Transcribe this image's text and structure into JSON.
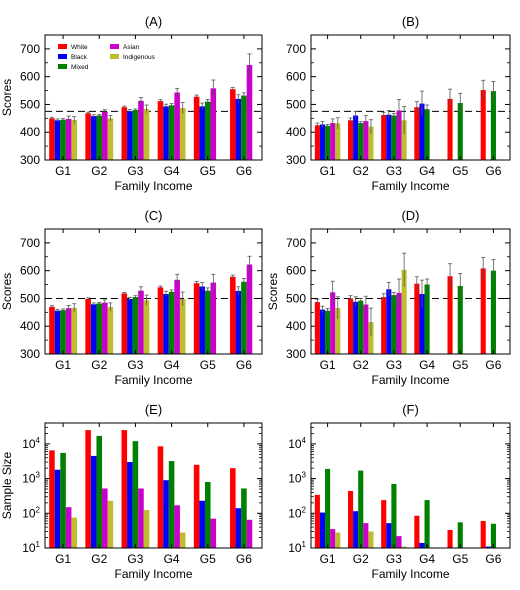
{
  "colors": {
    "White": "#ff0000",
    "Black": "#0000ff",
    "Mixed": "#008000",
    "Asian": "#cc00cc",
    "Indigenous": "#bdbd2e"
  },
  "chart_data": [
    {
      "id": "A",
      "title": "(A)",
      "type": "bar",
      "xlabel": "Family Income",
      "ylabel": "Scores",
      "ylim": [
        300,
        750
      ],
      "yticks": [
        300,
        400,
        500,
        600,
        700
      ],
      "reference_line": 475,
      "categories": [
        "G1",
        "G2",
        "G3",
        "G4",
        "G5",
        "G6"
      ],
      "legend": [
        "White",
        "Black",
        "Mixed",
        "Asian",
        "Indigenous"
      ],
      "series": [
        {
          "name": "White",
          "values": [
            450,
            468,
            490,
            512,
            528,
            555
          ],
          "err": [
            4,
            4,
            4,
            5,
            6,
            6
          ]
        },
        {
          "name": "Black",
          "values": [
            443,
            458,
            476,
            493,
            493,
            520
          ],
          "err": [
            5,
            5,
            6,
            8,
            12,
            15
          ]
        },
        {
          "name": "Mixed",
          "values": [
            445,
            460,
            480,
            497,
            510,
            532
          ],
          "err": [
            4,
            4,
            4,
            6,
            8,
            10
          ]
        },
        {
          "name": "Asian",
          "values": [
            448,
            473,
            513,
            543,
            558,
            642
          ],
          "err": [
            10,
            8,
            12,
            15,
            30,
            40
          ]
        },
        {
          "name": "Indigenous",
          "values": [
            444,
            450,
            484,
            487,
            null,
            null
          ],
          "err": [
            12,
            10,
            14,
            20,
            null,
            null
          ]
        }
      ]
    },
    {
      "id": "B",
      "title": "(B)",
      "type": "bar",
      "xlabel": "Family Income",
      "ylabel": "",
      "ylim": [
        300,
        750
      ],
      "yticks": [
        300,
        400,
        500,
        600,
        700
      ],
      "reference_line": 475,
      "categories": [
        "G1",
        "G2",
        "G3",
        "G4",
        "G5",
        "G6"
      ],
      "series": [
        {
          "name": "White",
          "values": [
            425,
            443,
            462,
            490,
            520,
            552
          ],
          "err": [
            8,
            8,
            10,
            20,
            35,
            35
          ]
        },
        {
          "name": "Black",
          "values": [
            428,
            460,
            463,
            503,
            null,
            null
          ],
          "err": [
            10,
            15,
            15,
            45,
            null,
            null
          ]
        },
        {
          "name": "Mixed",
          "values": [
            423,
            433,
            460,
            483,
            505,
            548
          ],
          "err": [
            5,
            5,
            8,
            15,
            35,
            35
          ]
        },
        {
          "name": "Asian",
          "values": [
            433,
            440,
            478,
            null,
            null,
            null
          ],
          "err": [
            15,
            20,
            40,
            null,
            null,
            null
          ]
        },
        {
          "name": "Indigenous",
          "values": [
            432,
            420,
            443,
            null,
            null,
            null
          ],
          "err": [
            20,
            25,
            50,
            null,
            null,
            null
          ]
        }
      ]
    },
    {
      "id": "C",
      "title": "(C)",
      "type": "bar",
      "xlabel": "Family Income",
      "ylabel": "Scores",
      "ylim": [
        300,
        750
      ],
      "yticks": [
        300,
        400,
        500,
        600,
        700
      ],
      "reference_line": 500,
      "categories": [
        "G1",
        "G2",
        "G3",
        "G4",
        "G5",
        "G6"
      ],
      "series": [
        {
          "name": "White",
          "values": [
            470,
            498,
            518,
            540,
            555,
            578
          ],
          "err": [
            4,
            4,
            4,
            5,
            6,
            6
          ]
        },
        {
          "name": "Black",
          "values": [
            456,
            479,
            498,
            516,
            543,
            527
          ],
          "err": [
            5,
            5,
            6,
            10,
            14,
            15
          ]
        },
        {
          "name": "Mixed",
          "values": [
            458,
            482,
            505,
            524,
            528,
            560
          ],
          "err": [
            4,
            4,
            5,
            7,
            10,
            12
          ]
        },
        {
          "name": "Asian",
          "values": [
            465,
            485,
            528,
            567,
            557,
            622
          ],
          "err": [
            10,
            10,
            14,
            20,
            30,
            30
          ]
        },
        {
          "name": "Indigenous",
          "values": [
            466,
            469,
            494,
            498,
            null,
            null
          ],
          "err": [
            15,
            15,
            18,
            25,
            null,
            null
          ]
        }
      ]
    },
    {
      "id": "D",
      "title": "(D)",
      "type": "bar",
      "xlabel": "Family Income",
      "ylabel": "Scores",
      "ylim": [
        300,
        750
      ],
      "yticks": [
        300,
        400,
        500,
        600,
        700
      ],
      "reference_line": 500,
      "categories": [
        "G1",
        "G2",
        "G3",
        "G4",
        "G5",
        "G6"
      ],
      "series": [
        {
          "name": "White",
          "values": [
            487,
            500,
            505,
            553,
            580,
            608
          ],
          "err": [
            10,
            10,
            12,
            25,
            45,
            40
          ]
        },
        {
          "name": "Black",
          "values": [
            460,
            488,
            533,
            516,
            null,
            null
          ],
          "err": [
            12,
            18,
            25,
            50,
            null,
            null
          ]
        },
        {
          "name": "Mixed",
          "values": [
            456,
            492,
            512,
            550,
            545,
            600
          ],
          "err": [
            8,
            8,
            10,
            20,
            45,
            40
          ]
        },
        {
          "name": "Asian",
          "values": [
            522,
            478,
            520,
            null,
            null,
            null
          ],
          "err": [
            40,
            30,
            50,
            null,
            null,
            null
          ]
        },
        {
          "name": "Indigenous",
          "values": [
            466,
            415,
            603,
            null,
            null,
            null
          ],
          "err": [
            40,
            50,
            60,
            null,
            null,
            null
          ]
        }
      ]
    },
    {
      "id": "E",
      "title": "(E)",
      "type": "bar",
      "yscale": "log",
      "xlabel": "Family Income",
      "ylabel": "Sample Size",
      "ylim": [
        10,
        40000
      ],
      "yticks": [
        10,
        100,
        1000,
        10000
      ],
      "categories": [
        "G1",
        "G2",
        "G3",
        "G4",
        "G5",
        "G6"
      ],
      "series": [
        {
          "name": "White",
          "values": [
            6500,
            25000,
            25000,
            8500,
            2500,
            2000
          ]
        },
        {
          "name": "Black",
          "values": [
            1800,
            4500,
            3000,
            900,
            230,
            140
          ]
        },
        {
          "name": "Mixed",
          "values": [
            5500,
            17000,
            12000,
            3200,
            800,
            520
          ]
        },
        {
          "name": "Asian",
          "values": [
            150,
            520,
            520,
            170,
            70,
            65
          ]
        },
        {
          "name": "Indigenous",
          "values": [
            75,
            230,
            125,
            28,
            null,
            null
          ]
        }
      ]
    },
    {
      "id": "F",
      "title": "(F)",
      "type": "bar",
      "yscale": "log",
      "xlabel": "Family Income",
      "ylabel": "",
      "ylim": [
        10,
        40000
      ],
      "yticks": [
        10,
        100,
        1000,
        10000
      ],
      "categories": [
        "G1",
        "G2",
        "G3",
        "G4",
        "G5",
        "G6"
      ],
      "series": [
        {
          "name": "White",
          "values": [
            340,
            440,
            240,
            85,
            33,
            60
          ]
        },
        {
          "name": "Black",
          "values": [
            105,
            115,
            52,
            14,
            null,
            11
          ]
        },
        {
          "name": "Mixed",
          "values": [
            1900,
            1700,
            700,
            240,
            55,
            50
          ]
        },
        {
          "name": "Asian",
          "values": [
            35,
            52,
            22,
            null,
            null,
            null
          ]
        },
        {
          "name": "Indigenous",
          "values": [
            28,
            30,
            11,
            null,
            null,
            null
          ]
        }
      ]
    }
  ]
}
